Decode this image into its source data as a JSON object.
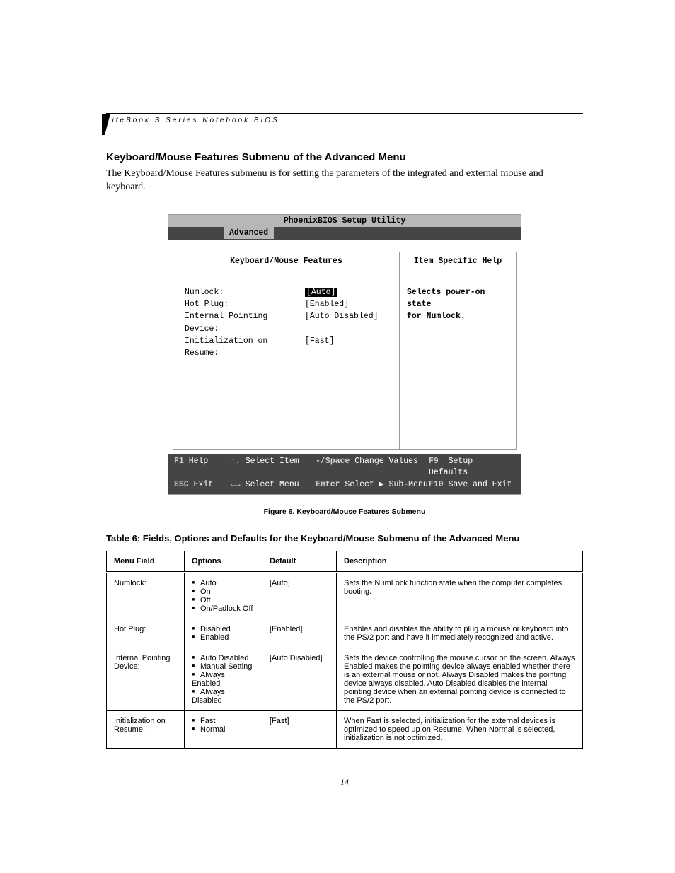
{
  "running_head": "LifeBook S Series Notebook BIOS",
  "section_title": "Keyboard/Mouse Features Submenu of the Advanced Menu",
  "intro": "The Keyboard/Mouse Features submenu is for setting the parameters of the integrated and external mouse and keyboard.",
  "bios": {
    "title": "PhoenixBIOS Setup Utility",
    "active_tab": "Advanced",
    "left_header": "Keyboard/Mouse Features",
    "right_header": "Item Specific Help",
    "rows": [
      {
        "label": "Numlock:",
        "value": "[Auto]",
        "selected": true
      },
      {
        "label": "Hot Plug:",
        "value": "[Enabled]",
        "selected": false
      },
      {
        "label": "Internal Pointing Device:",
        "value": "[Auto Disabled]",
        "selected": false
      },
      {
        "label": "Initialization on Resume:",
        "value": "[Fast]",
        "selected": false
      }
    ],
    "help_text_line1": "Selects power-on state",
    "help_text_line2": "for Numlock.",
    "footer": {
      "f1": "F1",
      "help": "Help",
      "updn": "↑↓",
      "select_item": "Select Item",
      "minus_space": "-/Space",
      "change_values": "Change Values",
      "f9": "F9",
      "setup_defaults": "Setup Defaults",
      "esc": "ESC",
      "exit": "Exit",
      "lr": "←→",
      "select_menu": "Select Menu",
      "enter": "Enter",
      "select_submenu": "Select ▶ Sub-Menu",
      "f10": "F10",
      "save_exit": "Save and Exit"
    }
  },
  "figure_caption": "Figure 6.   Keyboard/Mouse Features Submenu",
  "table_title": "Table 6: Fields, Options and Defaults for the Keyboard/Mouse Submenu of the Advanced Menu",
  "table": {
    "headers": {
      "menu": "Menu Field",
      "options": "Options",
      "def": "Default",
      "desc": "Description"
    },
    "rows": [
      {
        "menu": "Numlock:",
        "options": [
          "Auto",
          "On",
          "Off",
          "On/Padlock Off"
        ],
        "def": "[Auto]",
        "desc": "Sets the NumLock function state when the computer completes booting."
      },
      {
        "menu": "Hot Plug:",
        "options": [
          "Disabled",
          "Enabled"
        ],
        "def": "[Enabled]",
        "desc": "Enables and disables the ability to plug a mouse or keyboard into the PS/2 port and have it immediately recognized and active."
      },
      {
        "menu": "Internal Pointing Device:",
        "options": [
          "Auto Disabled",
          "Manual Setting",
          "Always Enabled",
          "Always Disabled"
        ],
        "def": "[Auto Disabled]",
        "desc": "Sets the device controlling the mouse cursor on the screen. Always Enabled makes the pointing device always enabled whether there is an external mouse or not. Always Disabled makes the pointing device always disabled. Auto Disabled disables the internal pointing device when an external pointing device is connected to the PS/2 port."
      },
      {
        "menu": "Initialization on Resume:",
        "options": [
          "Fast",
          "Normal"
        ],
        "def": "[Fast]",
        "desc": "When Fast is selected, initialization for the external devices is optimized to speed up on Resume. When Normal is selected, initialization is not optimized."
      }
    ]
  },
  "page_number": "14"
}
